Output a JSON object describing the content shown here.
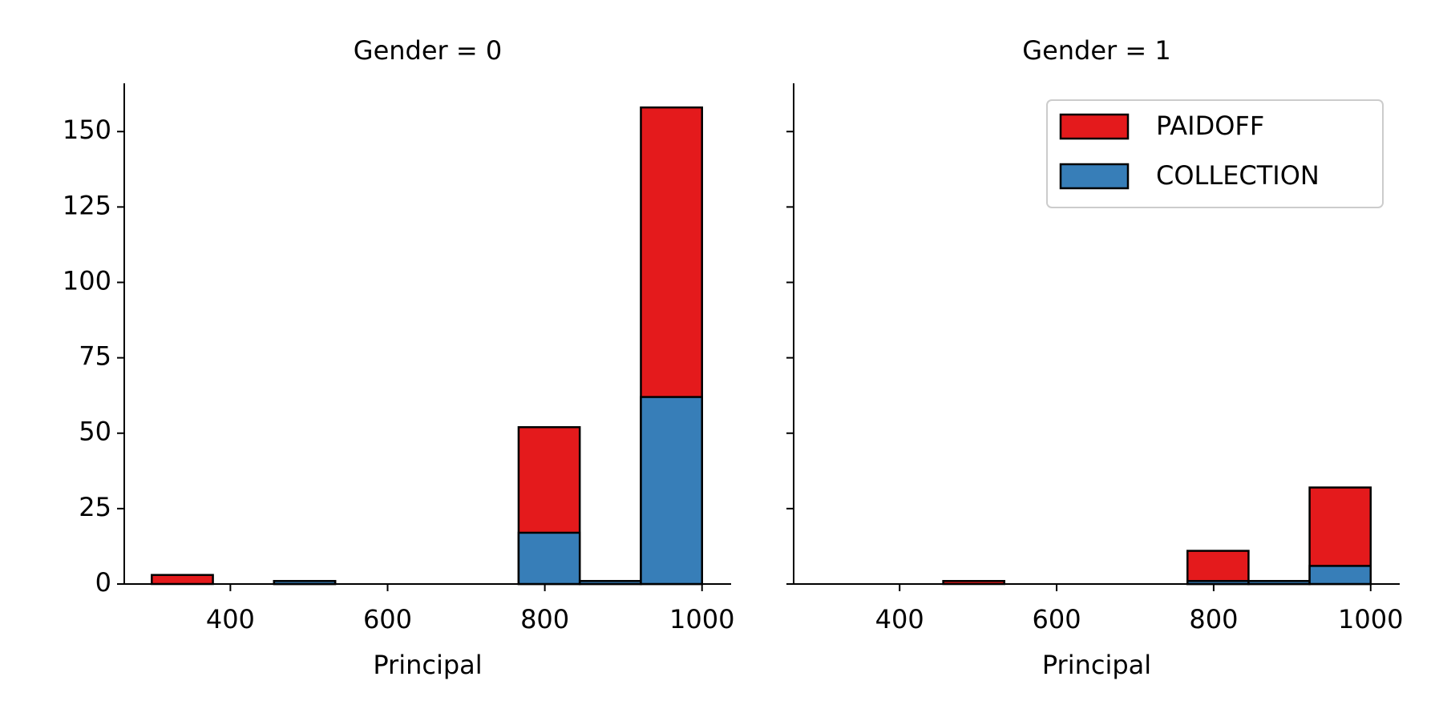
{
  "chart_data": [
    {
      "type": "histogram",
      "title": "Gender = 0",
      "xlabel": "Principal",
      "bins": [
        300,
        377.78,
        455.56,
        533.33,
        611.11,
        688.89,
        766.67,
        844.44,
        922.22,
        1000
      ],
      "series": [
        {
          "name": "PAIDOFF",
          "color": "#e41a1c",
          "values": [
            3,
            0,
            1,
            0,
            0,
            0,
            52,
            1,
            158
          ]
        },
        {
          "name": "COLLECTION",
          "color": "#377eb8",
          "values": [
            0,
            0,
            1,
            0,
            0,
            0,
            17,
            1,
            62
          ]
        }
      ],
      "xlim": [
        265,
        1037
      ],
      "ylim": [
        0,
        166
      ],
      "xticks": [
        400,
        600,
        800,
        1000
      ],
      "yticks": [
        0,
        25,
        50,
        75,
        100,
        125,
        150
      ]
    },
    {
      "type": "histogram",
      "title": "Gender = 1",
      "xlabel": "Principal",
      "bins": [
        300,
        377.78,
        455.56,
        533.33,
        611.11,
        688.89,
        766.67,
        844.44,
        922.22,
        1000
      ],
      "series": [
        {
          "name": "PAIDOFF",
          "color": "#e41a1c",
          "values": [
            0,
            0,
            1,
            0,
            0,
            0,
            11,
            1,
            32
          ]
        },
        {
          "name": "COLLECTION",
          "color": "#377eb8",
          "values": [
            0,
            0,
            0,
            0,
            0,
            0,
            1,
            1,
            6
          ]
        }
      ],
      "xlim": [
        265,
        1037
      ],
      "ylim": [
        0,
        166
      ],
      "xticks": [
        400,
        600,
        800,
        1000
      ],
      "legend": "upper right"
    }
  ]
}
